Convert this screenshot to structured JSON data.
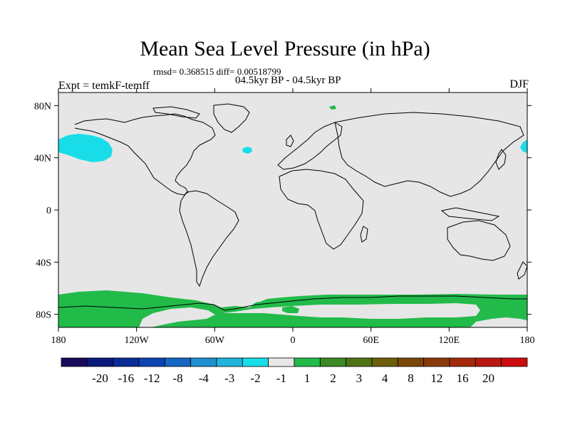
{
  "title": "Mean Sea Level Pressure (in hPa)",
  "stats": "rmsd= 0.368515 diff= 0.00518799",
  "period": "04.5kyr BP - 04.5kyr BP",
  "experiment": "Expt = temkF-temff",
  "season": "DJF",
  "axes": {
    "lat_ticks": [
      {
        "value": 80,
        "label": "80N"
      },
      {
        "value": 40,
        "label": "40N"
      },
      {
        "value": 0,
        "label": "0"
      },
      {
        "value": -40,
        "label": "40S"
      },
      {
        "value": -80,
        "label": "80S"
      }
    ],
    "lon_ticks": [
      {
        "value": -180,
        "label": "180"
      },
      {
        "value": -120,
        "label": "120W"
      },
      {
        "value": -60,
        "label": "60W"
      },
      {
        "value": 0,
        "label": "0"
      },
      {
        "value": 60,
        "label": "60E"
      },
      {
        "value": 120,
        "label": "120E"
      },
      {
        "value": 180,
        "label": "180"
      }
    ],
    "lon_range": [
      -180,
      180
    ],
    "lat_range": [
      -90,
      90
    ]
  },
  "colorbar": {
    "colors": [
      "#1a0a5e",
      "#0b1a7a",
      "#0a2a96",
      "#0c44b0",
      "#1466c2",
      "#1f8fd0",
      "#20b4dc",
      "#18dde8",
      "#e6e6e6",
      "#22bb4a",
      "#3a8a26",
      "#4e7314",
      "#6a5e0a",
      "#7a4708",
      "#8a3a0a",
      "#a32a0c",
      "#b8170e",
      "#cc0d0d"
    ],
    "labels": [
      "-20",
      "-16",
      "-12",
      "-8",
      "-4",
      "-3",
      "-2",
      "-1",
      "1",
      "2",
      "3",
      "4",
      "8",
      "12",
      "16",
      "20"
    ]
  },
  "colors": {
    "background": "#e6e6e6",
    "negative_fill": "#18dde8",
    "positive_fill": "#22bb4a"
  }
}
